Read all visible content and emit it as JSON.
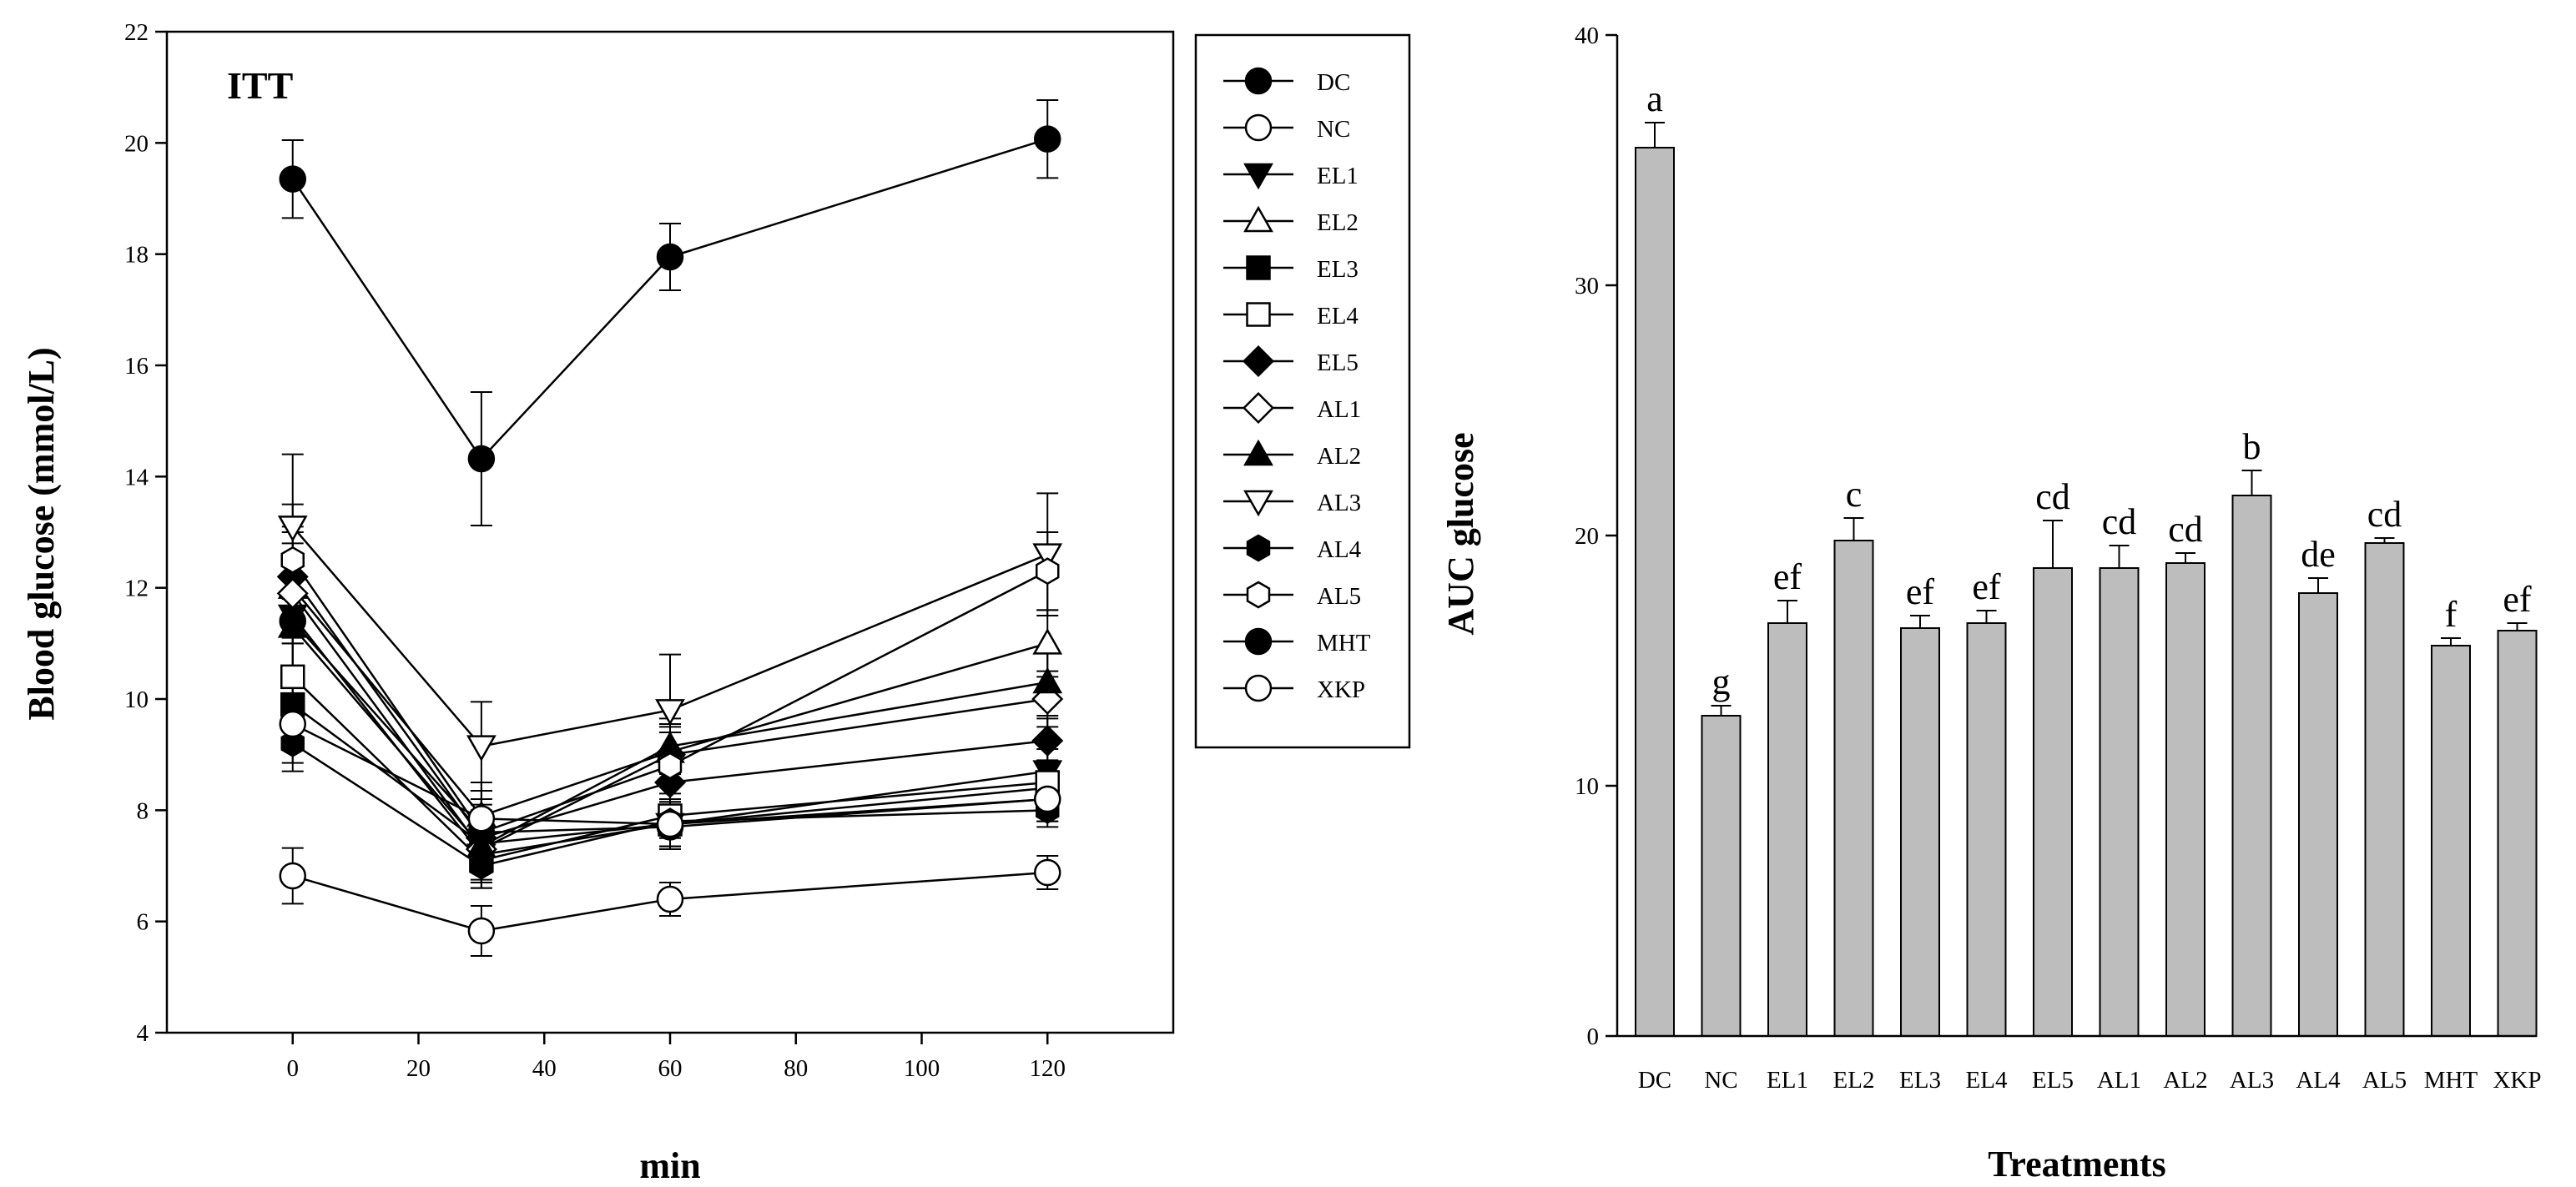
{
  "chart_data": [
    {
      "type": "line",
      "title": "ITT",
      "xlabel": "min",
      "ylabel": "Blood glucose (mmol/L)",
      "xlim": [
        -20,
        140
      ],
      "ylim": [
        4,
        22
      ],
      "x_ticks": [
        0,
        20,
        40,
        60,
        80,
        100,
        120
      ],
      "y_ticks": [
        4,
        6,
        8,
        10,
        12,
        14,
        16,
        18,
        20,
        22
      ],
      "x": [
        0,
        30,
        60,
        120
      ],
      "legend_position": "right",
      "series": [
        {
          "name": "DC",
          "marker": "circle",
          "filled": true,
          "values": [
            19.35,
            14.32,
            17.95,
            20.07
          ],
          "errors": [
            0.7,
            1.2,
            0.6,
            0.7
          ]
        },
        {
          "name": "NC",
          "marker": "circle",
          "filled": false,
          "values": [
            6.82,
            5.83,
            6.4,
            6.88
          ],
          "errors": [
            0.5,
            0.45,
            0.3,
            0.3
          ]
        },
        {
          "name": "EL1",
          "marker": "triangle-down",
          "filled": true,
          "values": [
            11.5,
            7.2,
            7.75,
            8.7
          ],
          "errors": [
            0.9,
            0.5,
            0.4,
            0.4
          ]
        },
        {
          "name": "EL2",
          "marker": "triangle-up",
          "filled": false,
          "values": [
            12.0,
            7.9,
            9.05,
            11.0
          ],
          "errors": [
            1.0,
            0.6,
            0.5,
            0.6
          ]
        },
        {
          "name": "EL3",
          "marker": "square",
          "filled": true,
          "values": [
            9.9,
            7.4,
            7.75,
            8.4
          ],
          "errors": [
            0.6,
            0.5,
            0.4,
            0.4
          ]
        },
        {
          "name": "EL4",
          "marker": "square",
          "filled": false,
          "values": [
            10.4,
            7.1,
            7.9,
            8.5
          ],
          "errors": [
            0.7,
            0.5,
            0.4,
            0.4
          ]
        },
        {
          "name": "EL5",
          "marker": "diamond",
          "filled": true,
          "values": [
            12.2,
            7.5,
            8.5,
            9.25
          ],
          "errors": [
            0.9,
            0.5,
            0.4,
            0.4
          ]
        },
        {
          "name": "AL1",
          "marker": "diamond",
          "filled": false,
          "values": [
            11.9,
            7.3,
            9.0,
            10.0
          ],
          "errors": [
            0.9,
            0.6,
            0.5,
            0.5
          ]
        },
        {
          "name": "AL2",
          "marker": "triangle-up",
          "filled": true,
          "values": [
            11.3,
            7.35,
            9.15,
            10.3
          ],
          "errors": [
            0.9,
            0.6,
            0.5,
            0.6
          ]
        },
        {
          "name": "AL3",
          "marker": "triangle-down",
          "filled": false,
          "values": [
            13.1,
            9.15,
            9.8,
            12.6
          ],
          "errors": [
            1.3,
            0.8,
            1.0,
            1.1
          ]
        },
        {
          "name": "AL4",
          "marker": "hexagon",
          "filled": true,
          "values": [
            9.2,
            7.0,
            7.8,
            8.0
          ],
          "errors": [
            0.5,
            0.4,
            0.3,
            0.3
          ]
        },
        {
          "name": "AL5",
          "marker": "hexagon",
          "filled": false,
          "values": [
            12.5,
            7.6,
            8.8,
            12.3
          ],
          "errors": [
            1.0,
            0.6,
            0.6,
            0.7
          ]
        },
        {
          "name": "MHT",
          "marker": "circle",
          "filled": true,
          "values": [
            11.4,
            7.6,
            7.7,
            8.2
          ],
          "errors": [
            0.8,
            0.5,
            0.4,
            0.4
          ]
        },
        {
          "name": "XKP",
          "marker": "circle",
          "filled": false,
          "values": [
            9.55,
            7.85,
            7.75,
            8.2
          ],
          "errors": [
            0.7,
            0.5,
            0.4,
            0.4
          ]
        }
      ]
    },
    {
      "type": "bar",
      "title": "",
      "xlabel": "Treatments",
      "ylabel": "AUC glucose",
      "ylim": [
        0,
        40
      ],
      "y_ticks": [
        0,
        10,
        20,
        30,
        40
      ],
      "bar_color": "#bdbdbd",
      "categories": [
        "DC",
        "NC",
        "EL1",
        "EL2",
        "EL3",
        "EL4",
        "EL5",
        "AL1",
        "AL2",
        "AL3",
        "AL4",
        "AL5",
        "MHT",
        "XKP"
      ],
      "values": [
        35.5,
        12.8,
        16.5,
        19.8,
        16.3,
        16.5,
        18.7,
        18.7,
        18.9,
        21.6,
        17.7,
        19.7,
        15.6,
        16.2
      ],
      "errors": [
        1.0,
        0.4,
        0.9,
        0.9,
        0.5,
        0.5,
        1.9,
        0.9,
        0.4,
        1.0,
        0.6,
        0.2,
        0.3,
        0.3
      ],
      "annotations": [
        "a",
        "g",
        "ef",
        "c",
        "ef",
        "ef",
        "cd",
        "cd",
        "cd",
        "b",
        "de",
        "cd",
        "f",
        "ef"
      ]
    }
  ]
}
